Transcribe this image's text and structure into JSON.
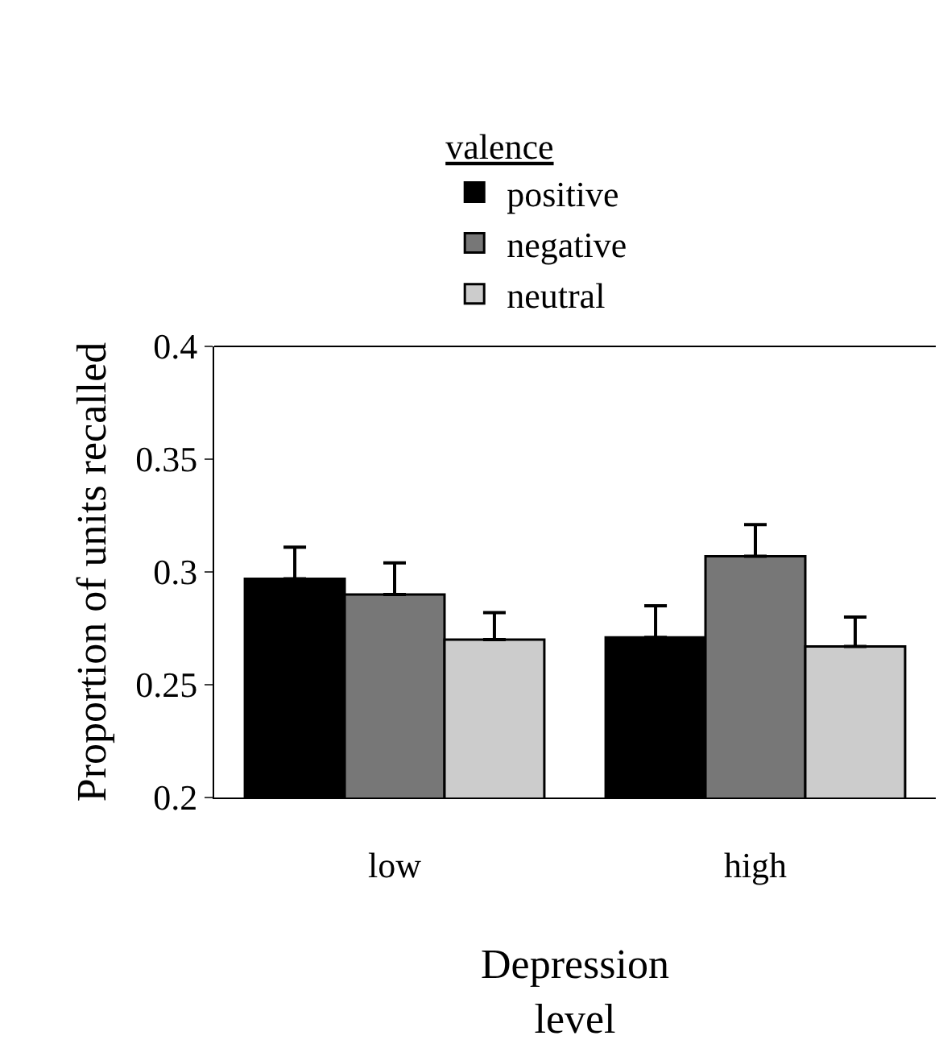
{
  "chart_data": {
    "type": "bar",
    "legend_title": "valence",
    "xlabel": "Depression\nlevel",
    "ylabel": "Proportion of units recalled",
    "categories": [
      "low",
      "high"
    ],
    "series": [
      {
        "name": "positive",
        "color": "#000000",
        "values": [
          0.297,
          0.271
        ],
        "errors": [
          [
            0.297,
            0.311
          ],
          [
            0.271,
            0.285
          ]
        ]
      },
      {
        "name": "negative",
        "color": "#777777",
        "values": [
          0.29,
          0.307
        ],
        "errors": [
          [
            0.29,
            0.304
          ],
          [
            0.307,
            0.321
          ]
        ]
      },
      {
        "name": "neutral",
        "color": "#cccccc",
        "values": [
          0.27,
          0.267
        ],
        "errors": [
          [
            0.27,
            0.282
          ],
          [
            0.267,
            0.28
          ]
        ]
      }
    ],
    "ylim": [
      0.2,
      0.4
    ],
    "yticks": [
      0.2,
      0.25,
      0.3,
      0.35,
      0.4
    ],
    "grid": false,
    "legend": "top"
  }
}
